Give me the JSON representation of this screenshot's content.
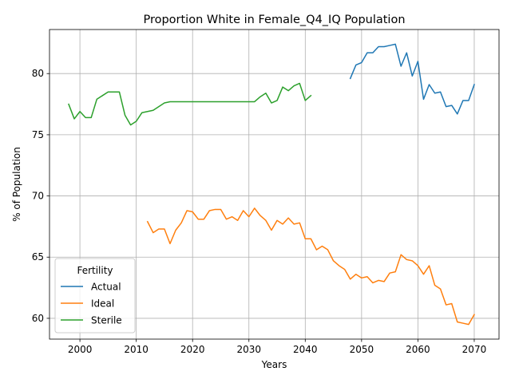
{
  "chart_data": {
    "type": "line",
    "title": "Proportion White in Female_Q4_IQ Population",
    "xlabel": "Years",
    "ylabel": "% of Population",
    "xlim": [
      1994.6,
      2074.4
    ],
    "ylim": [
      58.3,
      83.6
    ],
    "xticks": [
      2000,
      2010,
      2020,
      2030,
      2040,
      2050,
      2060,
      2070
    ],
    "yticks": [
      60,
      65,
      70,
      75,
      80
    ],
    "grid": true,
    "legend": {
      "title": "Fertility",
      "placement": "lower-left"
    },
    "series": [
      {
        "name": "Actual",
        "color": "#1f77b4",
        "x": [
          2048,
          2049,
          2050,
          2051,
          2052,
          2053,
          2054,
          2055,
          2056,
          2057,
          2058,
          2059,
          2060,
          2061,
          2062,
          2063,
          2064,
          2065,
          2066,
          2067,
          2068,
          2069,
          2070
        ],
        "y": [
          79.6,
          80.7,
          80.9,
          81.7,
          81.7,
          82.2,
          82.2,
          82.3,
          82.4,
          80.6,
          81.7,
          79.8,
          81.0,
          77.9,
          79.1,
          78.4,
          78.5,
          77.3,
          77.4,
          76.7,
          77.8,
          77.8,
          79.1
        ]
      },
      {
        "name": "Ideal",
        "color": "#ff7f0e",
        "x": [
          2012,
          2013,
          2014,
          2015,
          2016,
          2017,
          2018,
          2019,
          2020,
          2021,
          2022,
          2023,
          2024,
          2025,
          2026,
          2027,
          2028,
          2029,
          2030,
          2031,
          2032,
          2033,
          2034,
          2035,
          2036,
          2037,
          2038,
          2039,
          2040,
          2041,
          2042,
          2043,
          2044,
          2045,
          2046,
          2047,
          2048,
          2049,
          2050,
          2051,
          2052,
          2053,
          2054,
          2055,
          2056,
          2057,
          2058,
          2059,
          2060,
          2061,
          2062,
          2063,
          2064,
          2065,
          2066,
          2067,
          2068,
          2069,
          2070
        ],
        "y": [
          67.9,
          67.0,
          67.3,
          67.3,
          66.1,
          67.2,
          67.8,
          68.8,
          68.7,
          68.1,
          68.1,
          68.8,
          68.9,
          68.9,
          68.1,
          68.3,
          68.0,
          68.8,
          68.3,
          69.0,
          68.4,
          68.0,
          67.2,
          68.0,
          67.7,
          68.2,
          67.7,
          67.8,
          66.5,
          66.5,
          65.6,
          65.9,
          65.6,
          64.7,
          64.3,
          64.0,
          63.2,
          63.6,
          63.3,
          63.4,
          62.9,
          63.1,
          63.0,
          63.7,
          63.8,
          65.2,
          64.8,
          64.7,
          64.3,
          63.6,
          64.3,
          62.7,
          62.4,
          61.1,
          61.2,
          59.7,
          59.6,
          59.5,
          60.3
        ]
      },
      {
        "name": "Sterile",
        "color": "#2ca02c",
        "x": [
          1998,
          1999,
          2000,
          2001,
          2002,
          2003,
          2004,
          2005,
          2006,
          2007,
          2008,
          2009,
          2010,
          2011,
          2012,
          2013,
          2014,
          2015,
          2016,
          2017,
          2018,
          2019,
          2020,
          2021,
          2022,
          2023,
          2024,
          2025,
          2026,
          2027,
          2028,
          2029,
          2030,
          2031,
          2032,
          2033,
          2034,
          2035,
          2036,
          2037,
          2038,
          2039,
          2040,
          2041
        ],
        "y": [
          77.5,
          76.3,
          76.9,
          76.4,
          76.4,
          77.9,
          78.2,
          78.5,
          78.5,
          78.5,
          76.6,
          75.8,
          76.1,
          76.8,
          76.9,
          77.0,
          77.3,
          77.6,
          77.7,
          77.7,
          77.7,
          77.7,
          77.7,
          77.7,
          77.7,
          77.7,
          77.7,
          77.7,
          77.7,
          77.7,
          77.7,
          77.7,
          77.7,
          77.7,
          78.1,
          78.4,
          77.6,
          77.8,
          78.9,
          78.6,
          79.0,
          79.2,
          77.8,
          78.2
        ]
      }
    ]
  }
}
